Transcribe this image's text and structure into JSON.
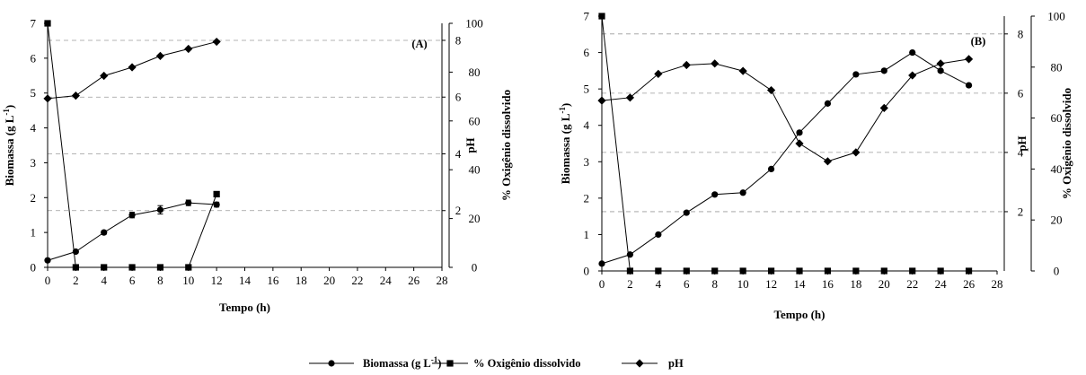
{
  "colors": {
    "ink": "#000000",
    "gridline": "#9a9a9a",
    "background": "#ffffff"
  },
  "legend": {
    "items": [
      {
        "label": "Biomassa (g L",
        "superscript": "-1",
        "suffix": ")",
        "marker": "circle"
      },
      {
        "label": "% Oxigênio dissolvido",
        "marker": "square"
      },
      {
        "label": "pH",
        "marker": "diamond"
      }
    ]
  },
  "chart_data": [
    {
      "type": "line",
      "panel_label": "(A)",
      "xlabel": "Tempo (h)",
      "ylabel_left": "Biomassa (g L-1)",
      "ylabel_left_parts": {
        "base": "Biomassa (g L",
        "sup": "-1",
        "end": ")"
      },
      "ylabel_ph": "pH",
      "ylabel_right": "% Oxigênio dissolvido",
      "xlim": [
        0,
        28
      ],
      "xticks": [
        "0",
        "2",
        "4",
        "6",
        "8",
        "10",
        "12",
        "14",
        "16",
        "18",
        "20",
        "22",
        "24",
        "26",
        "28"
      ],
      "ylim_left": [
        0,
        7
      ],
      "yticks_left": [
        "0",
        "1",
        "2",
        "3",
        "4",
        "5",
        "6",
        "7"
      ],
      "ylim_ph": [
        0,
        8.6
      ],
      "yticks_ph": [
        "2",
        "4",
        "6",
        "8"
      ],
      "ylim_right": [
        0,
        100
      ],
      "yticks_right": [
        "0",
        "20",
        "40",
        "60",
        "80",
        "100"
      ],
      "grid": "dashed horizontal",
      "series": [
        {
          "name": "Biomassa (g L-1)",
          "marker": "circle",
          "axis": "left",
          "x": [
            0,
            2,
            4,
            6,
            8,
            10,
            12
          ],
          "y": [
            0.2,
            0.45,
            1.0,
            1.5,
            1.65,
            1.85,
            1.8
          ],
          "err": [
            0,
            0,
            0.05,
            0.08,
            0.12,
            0.08,
            0.07
          ]
        },
        {
          "name": "% Oxigênio dissolvido",
          "marker": "square",
          "axis": "right",
          "x": [
            0,
            2,
            4,
            6,
            8,
            10,
            12
          ],
          "y": [
            100,
            0,
            0,
            0,
            0,
            0,
            30
          ]
        },
        {
          "name": "pH",
          "marker": "diamond",
          "axis": "ph",
          "x": [
            0,
            2,
            4,
            6,
            8,
            10,
            12
          ],
          "y": [
            5.95,
            6.05,
            6.75,
            7.05,
            7.45,
            7.7,
            7.95
          ]
        }
      ]
    },
    {
      "type": "line",
      "panel_label": "(B)",
      "xlabel": "Tempo (h)",
      "ylabel_left": "Biomassa (g L-1)",
      "ylabel_left_parts": {
        "base": "Biomassa (g L",
        "sup": "-1",
        "end": ")"
      },
      "ylabel_ph": "pH",
      "ylabel_right": "% Oxigênio dissolvido",
      "xlim": [
        0,
        28
      ],
      "xticks": [
        "0",
        "2",
        "4",
        "6",
        "8",
        "10",
        "12",
        "14",
        "16",
        "18",
        "20",
        "22",
        "24",
        "26",
        "28"
      ],
      "ylim_left": [
        0,
        7
      ],
      "yticks_left": [
        "0",
        "1",
        "2",
        "3",
        "4",
        "5",
        "6",
        "7"
      ],
      "ylim_ph": [
        0,
        8.6
      ],
      "yticks_ph": [
        "2",
        "4",
        "6",
        "8"
      ],
      "ylim_right": [
        0,
        100
      ],
      "yticks_right": [
        "0",
        "20",
        "40",
        "60",
        "80",
        "100"
      ],
      "grid": "dashed horizontal",
      "series": [
        {
          "name": "Biomassa (g L-1)",
          "marker": "circle",
          "axis": "left",
          "x": [
            0,
            2,
            4,
            6,
            8,
            10,
            12,
            14,
            16,
            18,
            20,
            22,
            24,
            26
          ],
          "y": [
            0.2,
            0.45,
            1.0,
            1.6,
            2.1,
            2.15,
            2.8,
            3.8,
            4.6,
            5.4,
            5.5,
            6.0,
            5.5,
            5.1
          ],
          "err": [
            0,
            0,
            0,
            0,
            0,
            0,
            0,
            0,
            0,
            0,
            0,
            0,
            0,
            0
          ]
        },
        {
          "name": "% Oxigênio dissolvido",
          "marker": "square",
          "axis": "right",
          "x": [
            0,
            2,
            4,
            6,
            8,
            10,
            12,
            14,
            16,
            18,
            20,
            22,
            24,
            26
          ],
          "y": [
            100,
            0,
            0,
            0,
            0,
            0,
            0,
            0,
            0,
            0,
            0,
            0,
            0,
            0
          ]
        },
        {
          "name": "pH",
          "marker": "diamond",
          "axis": "ph",
          "x": [
            0,
            2,
            4,
            6,
            8,
            10,
            12,
            14,
            16,
            18,
            20,
            22,
            24,
            26
          ],
          "y": [
            5.75,
            5.85,
            6.65,
            6.95,
            7.0,
            6.75,
            6.1,
            4.3,
            3.7,
            4.0,
            5.5,
            6.6,
            7.0,
            7.15
          ]
        }
      ]
    }
  ]
}
